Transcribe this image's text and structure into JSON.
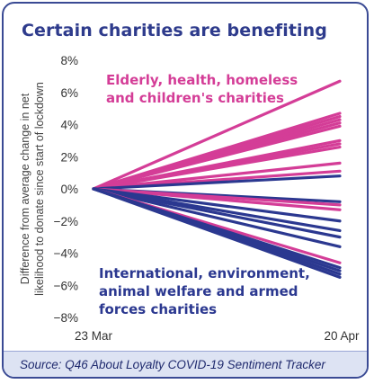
{
  "title": "Certain charities are benefiting",
  "source": "Source: Q46 About Loyalty COVID-19 Sentiment Tracker",
  "colors": {
    "pink": "#d43d97",
    "navy": "#2b3890",
    "border": "#3a4a94",
    "footer_bg": "#dde3f3"
  },
  "chart_data": {
    "type": "line",
    "title": "Certain charities are benefiting",
    "xlabel": "",
    "ylabel": "Difference from average change in net likelihood to donate since start of lockdown",
    "x": [
      "23 Mar",
      "20 Apr"
    ],
    "ylim": [
      -8,
      8
    ],
    "yticks": [
      -8,
      -6,
      -4,
      -2,
      0,
      2,
      4,
      6,
      8
    ],
    "ytick_labels": [
      "−8%",
      "−6%",
      "−4%",
      "−2%",
      "0%",
      "2%",
      "4%",
      "6%",
      "8%"
    ],
    "grid": false,
    "annotations": [
      {
        "lines": [
          "Elderly, health, homeless",
          "and children's charities"
        ],
        "color": "#d43d97"
      },
      {
        "lines": [
          "International, environment,",
          "animal welfare and armed",
          "forces charities"
        ],
        "color": "#2b3890"
      }
    ],
    "series": [
      {
        "group": "pink",
        "values": [
          0,
          6.7
        ]
      },
      {
        "group": "pink",
        "values": [
          0,
          4.7
        ]
      },
      {
        "group": "pink",
        "values": [
          0,
          4.5
        ]
      },
      {
        "group": "pink",
        "values": [
          0,
          4.3
        ]
      },
      {
        "group": "pink",
        "values": [
          0,
          4.1
        ]
      },
      {
        "group": "pink",
        "values": [
          0,
          3.9
        ]
      },
      {
        "group": "pink",
        "values": [
          0,
          3.0
        ]
      },
      {
        "group": "pink",
        "values": [
          0,
          2.8
        ]
      },
      {
        "group": "pink",
        "values": [
          0,
          2.6
        ]
      },
      {
        "group": "pink",
        "values": [
          0,
          1.6
        ]
      },
      {
        "group": "pink",
        "values": [
          0,
          1.1
        ]
      },
      {
        "group": "navy",
        "values": [
          0,
          0.8
        ]
      },
      {
        "group": "navy",
        "values": [
          0,
          -0.8
        ]
      },
      {
        "group": "pink",
        "values": [
          0,
          -1.0
        ]
      },
      {
        "group": "pink",
        "values": [
          0,
          -1.3
        ]
      },
      {
        "group": "navy",
        "values": [
          0,
          -2.0
        ]
      },
      {
        "group": "navy",
        "values": [
          0,
          -2.6
        ]
      },
      {
        "group": "navy",
        "values": [
          0,
          -3.0
        ]
      },
      {
        "group": "navy",
        "values": [
          0,
          -3.6
        ]
      },
      {
        "group": "pink",
        "values": [
          0,
          -4.6
        ]
      },
      {
        "group": "navy",
        "values": [
          0,
          -4.9
        ]
      },
      {
        "group": "navy",
        "values": [
          0,
          -5.1
        ]
      },
      {
        "group": "navy",
        "values": [
          0,
          -5.3
        ]
      },
      {
        "group": "navy",
        "values": [
          0,
          -5.5
        ]
      }
    ]
  }
}
